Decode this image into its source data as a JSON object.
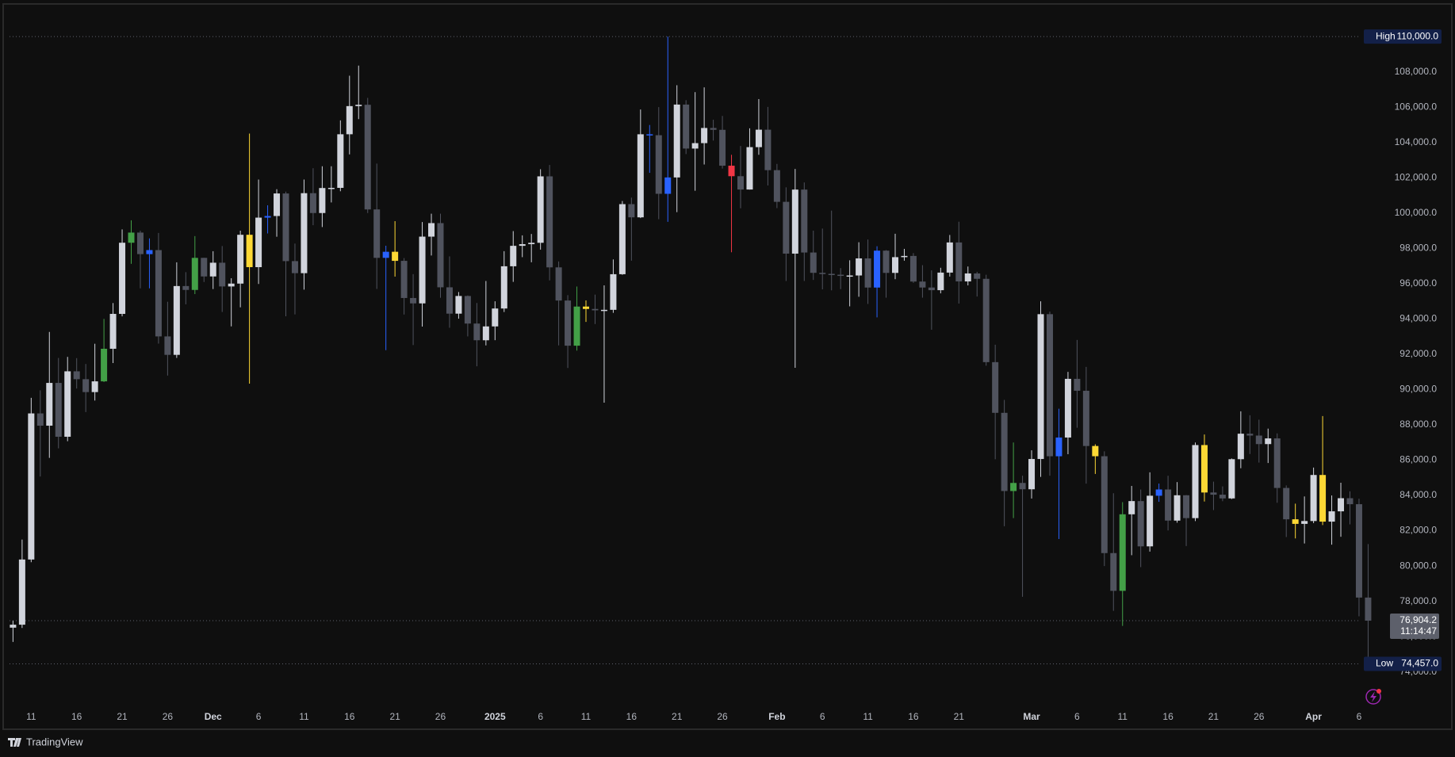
{
  "chart_data": {
    "type": "candlestick",
    "categories": [
      null,
      null,
      "11",
      null,
      null,
      null,
      null,
      "16",
      null,
      null,
      null,
      null,
      "21",
      null,
      null,
      null,
      null,
      "26",
      null,
      null,
      null,
      null,
      "Dec",
      null,
      null,
      null,
      null,
      "6",
      null,
      null,
      null,
      null,
      "11",
      null,
      null,
      null,
      null,
      "16",
      null,
      null,
      null,
      null,
      "21",
      null,
      null,
      null,
      null,
      "26",
      null,
      null,
      null,
      null,
      null,
      "2025",
      null,
      null,
      null,
      null,
      "6",
      null,
      null,
      null,
      null,
      "11",
      null,
      null,
      null,
      null,
      "16",
      null,
      null,
      null,
      null,
      "21",
      null,
      null,
      null,
      null,
      "26",
      null,
      null,
      null,
      null,
      null,
      "Feb",
      null,
      null,
      null,
      null,
      "6",
      null,
      null,
      null,
      null,
      "11",
      null,
      null,
      null,
      null,
      "16",
      null,
      null,
      null,
      null,
      "21",
      null,
      null,
      null,
      null,
      null,
      null,
      null,
      "Mar",
      null,
      null,
      null,
      null,
      "6",
      null,
      null,
      null,
      null,
      "11",
      null,
      null,
      null,
      null,
      "16",
      null,
      null,
      null,
      null,
      "21",
      null,
      null,
      null,
      null,
      "26",
      null,
      null,
      null,
      null,
      null,
      "Apr",
      null,
      null,
      null,
      null,
      "6",
      null
    ],
    "open": [
      76509,
      76677,
      80370,
      88647,
      87952,
      90375,
      87325,
      91032,
      90586,
      89855,
      90464,
      92310,
      94286,
      98317,
      98892,
      97672,
      97900,
      93010,
      91965,
      95863,
      95643,
      97460,
      96407,
      97185,
      95840,
      96002,
      98768,
      96934,
      99740,
      99831,
      101109,
      97276,
      96593,
      101125,
      100000,
      101417,
      101426,
      104463,
      106058,
      106133,
      100204,
      97461,
      97805,
      97291,
      95186,
      94881,
      98663,
      99429,
      95792,
      94299,
      95300,
      93738,
      92792,
      93576,
      94591,
      96984,
      98142,
      98236,
      98314,
      102078,
      96922,
      95043,
      92484,
      94701,
      94566,
      94488,
      94516,
      96534,
      100504,
      99756,
      104462,
      104409,
      101089,
      102016,
      106145,
      103653,
      103960,
      104819,
      104714,
      102682,
      102087,
      101332,
      103733,
      104722,
      102429,
      100635,
      97700,
      101328,
      97763,
      96612,
      96554,
      96506,
      96444,
      96462,
      97430,
      95778,
      97869,
      96608,
      97500,
      97569,
      96118,
      95780,
      95629,
      96625,
      98333,
      96125,
      96577,
      96273,
      91552,
      88680,
      84250,
      84708,
      84350,
      86065,
      94270,
      86220,
      87281,
      90606,
      89931,
      86801,
      86222,
      80734,
      78595,
      82932,
      83680,
      81115,
      83983,
      84338,
      82574,
      84010,
      82715,
      86854,
      84167,
      84043,
      83832,
      86054,
      87498,
      87392,
      86909,
      87232,
      84424,
      82648,
      82389,
      82550,
      85159,
      82516,
      83100,
      83843,
      83504,
      78214
    ],
    "high": [
      76900,
      81500,
      89530,
      89956,
      93265,
      91790,
      91850,
      91779,
      91449,
      92594,
      94002,
      94900,
      99073,
      99588,
      99000,
      98564,
      98871,
      94973,
      97208,
      96650,
      98693,
      97463,
      97836,
      98130,
      96305,
      99000,
      104500,
      101898,
      100439,
      101350,
      101215,
      98270,
      101895,
      102540,
      102650,
      102650,
      105250,
      107780,
      108353,
      106524,
      102800,
      98150,
      99540,
      97448,
      96538,
      99487,
      99962,
      99963,
      97544,
      95525,
      95330,
      94903,
      96150,
      95000,
      97839,
      98976,
      98734,
      98813,
      102482,
      102724,
      97258,
      95349,
      95836,
      95050,
      95378,
      95900,
      97371,
      100681,
      100872,
      105865,
      104988,
      106000,
      110000,
      107240,
      106394,
      106850,
      107120,
      105286,
      105500,
      103300,
      103800,
      104800,
      106457,
      106012,
      102783,
      101456,
      102500,
      101732,
      99000,
      99120,
      100137,
      96880,
      97323,
      98345,
      98500,
      98119,
      97900,
      98826,
      97970,
      97729,
      97046,
      96753,
      96899,
      98756,
      99508,
      96970,
      96670,
      96503,
      92540,
      89414,
      87000,
      85120,
      86558,
      95000,
      94416,
      88911,
      91000,
      92810,
      91283,
      86897,
      86500,
      84123,
      83617,
      84539,
      84336,
      85309,
      84672,
      85115,
      84756,
      84022,
      87000,
      87453,
      84782,
      84513,
      86094,
      88765,
      88542,
      88292,
      87786,
      87515,
      84567,
      83534,
      83943,
      85579,
      88500,
      83998,
      84720,
      84234,
      83817,
      81243
    ],
    "low": [
      75700,
      76492,
      80216,
      85072,
      86127,
      86668,
      87073,
      90056,
      88722,
      89376,
      90426,
      91500,
      94145,
      97122,
      95733,
      95734,
      92600,
      90791,
      91792,
      94827,
      95407,
      96092,
      95693,
      94395,
      93578,
      94658,
      90335,
      95981,
      98844,
      98657,
      94150,
      94256,
      95658,
      99311,
      99206,
      100600,
      101234,
      103322,
      105321,
      100000,
      95700,
      92232,
      96398,
      94250,
      92520,
      93569,
      97593,
      95199,
      93500,
      94014,
      93009,
      91317,
      92500,
      92796,
      94392,
      96100,
      97500,
      97210,
      97926,
      96181,
      92500,
      91220,
      92206,
      93831,
      93712,
      89256,
      94346,
      96500,
      97300,
      99716,
      102277,
      99651,
      99500,
      100051,
      103340,
      101262,
      102750,
      104106,
      102520,
      97777,
      100272,
      101328,
      103300,
      101560,
      100279,
      96150,
      91231,
      96150,
      96209,
      95676,
      95620,
      95688,
      94713,
      95256,
      94850,
      94088,
      95205,
      96252,
      97300,
      96046,
      95205,
      93388,
      95450,
      96400,
      94871,
      95900,
      95270,
      91350,
      86050,
      82256,
      82716,
      78258,
      83824,
      85050,
      85117,
      81529,
      86336,
      87836,
      84667,
      85218,
      80000,
      77459,
      76606,
      80614,
      79939,
      80818,
      83639,
      82017,
      82456,
      81134,
      82547,
      83655,
      83171,
      83674,
      83794,
      85541,
      86346,
      85861,
      85837,
      83585,
      81644,
      81565,
      81278,
      82432,
      82320,
      81211,
      81659,
      82361,
      77153,
      74457
    ],
    "close": [
      76677,
      80370,
      88647,
      87952,
      90375,
      87325,
      91032,
      90586,
      89855,
      90464,
      92310,
      94286,
      98317,
      98892,
      97672,
      97900,
      93010,
      91965,
      95863,
      95643,
      97460,
      96407,
      97185,
      95840,
      96002,
      98768,
      96934,
      99740,
      99831,
      101109,
      97276,
      96593,
      101125,
      100000,
      101417,
      101426,
      104463,
      106058,
      106133,
      100204,
      97461,
      97805,
      97291,
      95186,
      94881,
      98663,
      99429,
      95792,
      94299,
      95300,
      93738,
      92792,
      93576,
      94591,
      96984,
      98142,
      98236,
      98314,
      102078,
      96922,
      95043,
      92484,
      94701,
      94566,
      94488,
      94516,
      96534,
      100504,
      99756,
      104462,
      104409,
      101089,
      102016,
      106145,
      103653,
      103960,
      104819,
      104714,
      102682,
      102087,
      101332,
      103733,
      104722,
      102429,
      100635,
      97700,
      101328,
      97763,
      96612,
      96554,
      96506,
      96444,
      96462,
      97430,
      95778,
      97869,
      96608,
      97500,
      97569,
      96118,
      95780,
      95629,
      96625,
      98333,
      96125,
      96577,
      96273,
      91552,
      88680,
      84250,
      84708,
      84350,
      86065,
      94270,
      86220,
      87281,
      90606,
      89931,
      86801,
      86222,
      80734,
      78595,
      82932,
      83680,
      81115,
      83983,
      84338,
      82574,
      84010,
      82715,
      86854,
      84167,
      84043,
      83832,
      86054,
      87498,
      87392,
      86909,
      87232,
      84424,
      82648,
      82389,
      82550,
      85159,
      82516,
      83100,
      83843,
      83504,
      78214,
      76904.2
    ],
    "colors": [
      "#d1d4dc",
      "#d1d4dc",
      "#d1d4dc",
      "#50535e",
      "#d1d4dc",
      "#50535e",
      "#d1d4dc",
      "#50535e",
      "#50535e",
      "#d1d4dc",
      "#43a047",
      "#d1d4dc",
      "#d1d4dc",
      "#43a047",
      "#50535e",
      "#2962ff",
      "#50535e",
      "#50535e",
      "#d1d4dc",
      "#50535e",
      "#43a047",
      "#50535e",
      "#d1d4dc",
      "#50535e",
      "#d1d4dc",
      "#d1d4dc",
      "#fdd835",
      "#d1d4dc",
      "#2962ff",
      "#d1d4dc",
      "#50535e",
      "#50535e",
      "#d1d4dc",
      "#50535e",
      "#d1d4dc",
      "#d1d4dc",
      "#d1d4dc",
      "#d1d4dc",
      "#d1d4dc",
      "#50535e",
      "#50535e",
      "#2962ff",
      "#fdd835",
      "#50535e",
      "#50535e",
      "#d1d4dc",
      "#d1d4dc",
      "#50535e",
      "#50535e",
      "#d1d4dc",
      "#50535e",
      "#50535e",
      "#d1d4dc",
      "#d1d4dc",
      "#d1d4dc",
      "#d1d4dc",
      "#d1d4dc",
      "#d1d4dc",
      "#d1d4dc",
      "#50535e",
      "#50535e",
      "#50535e",
      "#43a047",
      "#fdd835",
      "#50535e",
      "#d1d4dc",
      "#d1d4dc",
      "#d1d4dc",
      "#50535e",
      "#d1d4dc",
      "#2962ff",
      "#50535e",
      "#2962ff",
      "#d1d4dc",
      "#50535e",
      "#d1d4dc",
      "#d1d4dc",
      "#50535e",
      "#50535e",
      "#f23645",
      "#50535e",
      "#d1d4dc",
      "#d1d4dc",
      "#50535e",
      "#50535e",
      "#50535e",
      "#d1d4dc",
      "#50535e",
      "#50535e",
      "#50535e",
      "#50535e",
      "#50535e",
      "#d1d4dc",
      "#d1d4dc",
      "#50535e",
      "#2962ff",
      "#50535e",
      "#d1d4dc",
      "#d1d4dc",
      "#50535e",
      "#50535e",
      "#50535e",
      "#d1d4dc",
      "#d1d4dc",
      "#50535e",
      "#d1d4dc",
      "#50535e",
      "#50535e",
      "#50535e",
      "#50535e",
      "#43a047",
      "#50535e",
      "#d1d4dc",
      "#d1d4dc",
      "#50535e",
      "#2962ff",
      "#d1d4dc",
      "#50535e",
      "#50535e",
      "#fdd835",
      "#50535e",
      "#50535e",
      "#43a047",
      "#d1d4dc",
      "#50535e",
      "#d1d4dc",
      "#2962ff",
      "#50535e",
      "#d1d4dc",
      "#50535e",
      "#d1d4dc",
      "#fdd835",
      "#50535e",
      "#50535e",
      "#d1d4dc",
      "#d1d4dc",
      "#50535e",
      "#50535e",
      "#d1d4dc",
      "#50535e",
      "#50535e",
      "#fdd835",
      "#d1d4dc",
      "#d1d4dc",
      "#fdd835",
      "#d1d4dc",
      "#d1d4dc",
      "#50535e",
      "#50535e",
      "#50535e"
    ],
    "ylim": [
      72100,
      111800
    ],
    "yticks": [
      {
        "value": 74000,
        "label": "74,000.0"
      },
      {
        "value": 76000,
        "label": "76,000.0"
      },
      {
        "value": 78000,
        "label": "78,000.0"
      },
      {
        "value": 80000,
        "label": "80,000.0"
      },
      {
        "value": 82000,
        "label": "82,000.0"
      },
      {
        "value": 84000,
        "label": "84,000.0"
      },
      {
        "value": 86000,
        "label": "86,000.0"
      },
      {
        "value": 88000,
        "label": "88,000.0"
      },
      {
        "value": 90000,
        "label": "90,000.0"
      },
      {
        "value": 92000,
        "label": "92,000.0"
      },
      {
        "value": 94000,
        "label": "94,000.0"
      },
      {
        "value": 96000,
        "label": "96,000.0"
      },
      {
        "value": 98000,
        "label": "98,000.0"
      },
      {
        "value": 100000,
        "label": "100,000.0"
      },
      {
        "value": 102000,
        "label": "102,000.0"
      },
      {
        "value": 104000,
        "label": "104,000.0"
      },
      {
        "value": 106000,
        "label": "106,000.0"
      },
      {
        "value": 108000,
        "label": "108,000.0"
      }
    ],
    "grid": false,
    "high_marker": {
      "label": "High",
      "value": 110000,
      "value_label": "110,000.0"
    },
    "low_marker": {
      "label": "Low",
      "value": 74457,
      "value_label": "74,457.0"
    },
    "last_price": {
      "value": 76904.2,
      "value_label": "76,904.2",
      "countdown": "11:14:47"
    }
  },
  "branding": "TradingView"
}
